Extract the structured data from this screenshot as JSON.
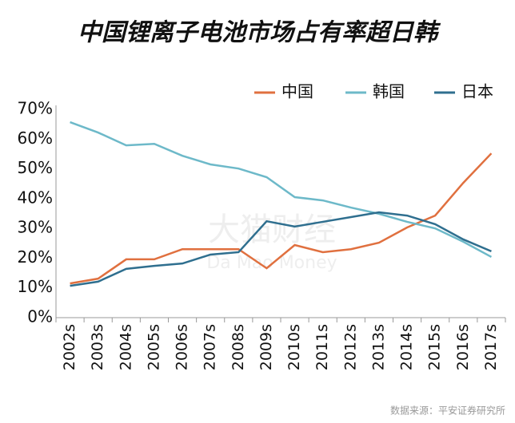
{
  "chart_data": {
    "type": "line",
    "title": "中国锂离子电池市场占有率超日韩",
    "categories": [
      "2002s",
      "2003s",
      "2004s",
      "2005s",
      "2006s",
      "2007s",
      "2008s",
      "2009s",
      "2010s",
      "2011s",
      "2012s",
      "2013s",
      "2014s",
      "2015s",
      "2016s",
      "2017s"
    ],
    "series": [
      {
        "name": "中国",
        "color": "#e0703f",
        "values": [
          11.5,
          13.1,
          19.6,
          19.6,
          23,
          23,
          23,
          16.6,
          24.4,
          22,
          23,
          25.2,
          30.3,
          34.3,
          45.3,
          55.2
        ]
      },
      {
        "name": "韩国",
        "color": "#6db9c9",
        "values": [
          65.7,
          62.2,
          57.9,
          58.4,
          54.4,
          51.5,
          50.1,
          47.2,
          40.5,
          39.4,
          37,
          34.9,
          32.2,
          30,
          25.5,
          20.4
        ]
      },
      {
        "name": "日本",
        "color": "#2f6f8f",
        "values": [
          10.7,
          12.1,
          16.4,
          17.4,
          18.2,
          21.2,
          22,
          32.4,
          30.6,
          32.2,
          33.8,
          35.4,
          34.3,
          31.4,
          26.3,
          22.3
        ]
      }
    ],
    "ylim": [
      0,
      70
    ],
    "yticks": [
      {
        "value": 0,
        "label": "0%"
      },
      {
        "value": 10,
        "label": "10%"
      },
      {
        "value": 20,
        "label": "20%"
      },
      {
        "value": 30,
        "label": "30%"
      },
      {
        "value": 40,
        "label": "40%"
      },
      {
        "value": 50,
        "label": "50%"
      },
      {
        "value": 60,
        "label": "60%"
      },
      {
        "value": 70,
        "label": "70%"
      }
    ],
    "legend": "top-right",
    "watermark": [
      "大猫财经",
      "Da Mao Money"
    ],
    "source": "数据来源：平安证券研究所"
  }
}
